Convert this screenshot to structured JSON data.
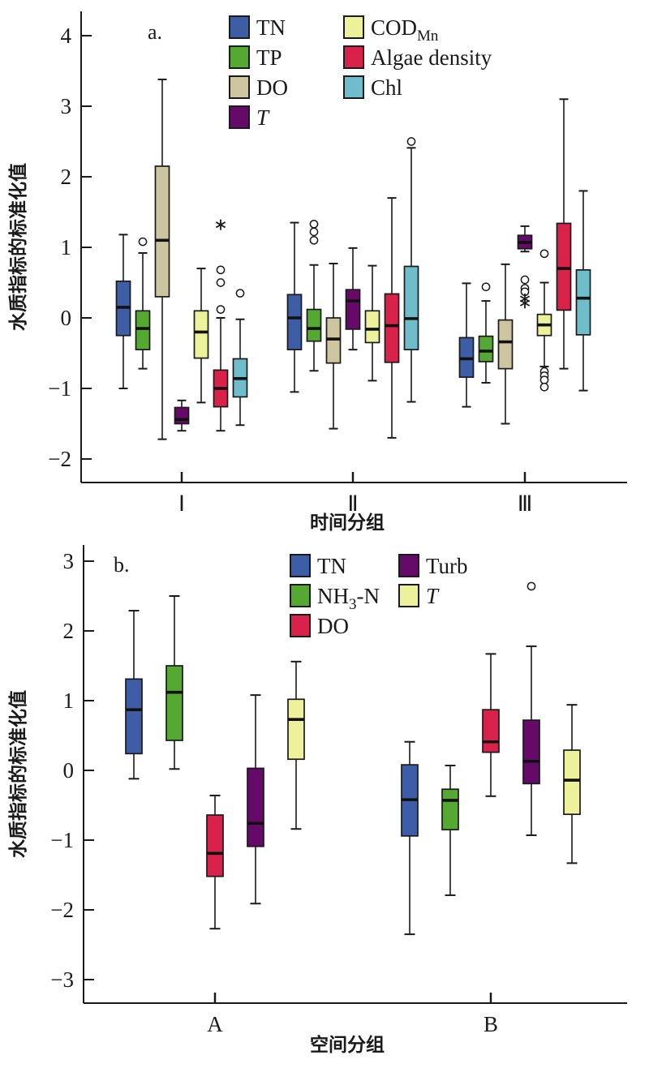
{
  "figure": {
    "panels": [
      {
        "panel_label": "a.",
        "xlabel": "时间分组",
        "ylabel": "水质指标的标准化值",
        "categories": [
          "Ⅰ",
          "Ⅱ",
          "Ⅲ"
        ]
      },
      {
        "panel_label": "b.",
        "xlabel": "空间分组",
        "ylabel": "水质指标的标准化值",
        "categories": [
          "A",
          "B"
        ]
      }
    ]
  },
  "chart_data": [
    {
      "type": "boxplot",
      "panel_label": "a.",
      "xlabel": "时间分组",
      "ylabel": "水质指标的标准化值",
      "ylim": [
        -2.35,
        4.35
      ],
      "yticks": [
        4,
        3,
        2,
        1,
        0,
        -1,
        -2
      ],
      "categories": [
        "Ⅰ",
        "Ⅱ",
        "Ⅲ"
      ],
      "grid": false,
      "legend_position": "top-inside-two-columns",
      "legend_columns": [
        [
          0,
          1,
          2,
          3
        ],
        [
          4,
          5,
          6
        ]
      ],
      "series": [
        {
          "name": "TN",
          "color": "#3D5EA6",
          "label": {
            "pre": "TN"
          },
          "boxes": [
            {
              "category": "Ⅰ",
              "low": -1.0,
              "q1": -0.25,
              "median": 0.15,
              "q3": 0.52,
              "high": 1.18,
              "outliers": [],
              "extremes": []
            },
            {
              "category": "Ⅱ",
              "low": -1.05,
              "q1": -0.45,
              "median": 0.0,
              "q3": 0.33,
              "high": 1.35,
              "outliers": [],
              "extremes": []
            },
            {
              "category": "Ⅲ",
              "low": -1.26,
              "q1": -0.84,
              "median": -0.58,
              "q3": -0.28,
              "high": 0.49,
              "outliers": [],
              "extremes": []
            }
          ]
        },
        {
          "name": "TP",
          "color": "#55A933",
          "label": {
            "pre": "TP"
          },
          "boxes": [
            {
              "category": "Ⅰ",
              "low": -0.72,
              "q1": -0.45,
              "median": -0.15,
              "q3": 0.1,
              "high": 0.92,
              "outliers": [
                1.08
              ],
              "extremes": []
            },
            {
              "category": "Ⅱ",
              "low": -0.75,
              "q1": -0.33,
              "median": -0.15,
              "q3": 0.12,
              "high": 0.75,
              "outliers": [
                1.1,
                1.22,
                1.33
              ],
              "extremes": []
            },
            {
              "category": "Ⅲ",
              "low": -0.92,
              "q1": -0.62,
              "median": -0.47,
              "q3": -0.26,
              "high": 0.24,
              "outliers": [
                0.44
              ],
              "extremes": []
            }
          ]
        },
        {
          "name": "DO",
          "color": "#CDC5A0",
          "label": {
            "pre": "DO"
          },
          "boxes": [
            {
              "category": "Ⅰ",
              "low": -1.72,
              "q1": 0.3,
              "median": 1.1,
              "q3": 2.15,
              "high": 3.38,
              "outliers": [],
              "extremes": []
            },
            {
              "category": "Ⅱ",
              "low": -1.57,
              "q1": -0.64,
              "median": -0.3,
              "q3": 0.0,
              "high": 0.77,
              "outliers": [],
              "extremes": []
            },
            {
              "category": "Ⅲ",
              "low": -1.5,
              "q1": -0.72,
              "median": -0.34,
              "q3": -0.03,
              "high": 0.76,
              "outliers": [],
              "extremes": []
            }
          ]
        },
        {
          "name": "T",
          "color": "#650A68",
          "label": {
            "pre": "T",
            "italic": true
          },
          "boxes": [
            {
              "category": "Ⅰ",
              "low": -1.6,
              "q1": -1.5,
              "median": -1.44,
              "q3": -1.27,
              "high": -1.17,
              "outliers": [],
              "extremes": []
            },
            {
              "category": "Ⅱ",
              "low": -0.45,
              "q1": -0.16,
              "median": 0.24,
              "q3": 0.4,
              "high": 0.99,
              "outliers": [],
              "extremes": []
            },
            {
              "category": "Ⅲ",
              "low": 0.94,
              "q1": 0.98,
              "median": 1.07,
              "q3": 1.17,
              "high": 1.3,
              "outliers": [
                0.54,
                0.42,
                0.37
              ],
              "extremes": [
                0.27,
                0.21
              ]
            }
          ]
        },
        {
          "name": "COD-Mn",
          "color": "#EDF199",
          "label": {
            "pre": "COD",
            "sub": "Mn"
          },
          "boxes": [
            {
              "category": "Ⅰ",
              "low": -1.2,
              "q1": -0.57,
              "median": -0.2,
              "q3": 0.1,
              "high": 0.7,
              "outliers": [],
              "extremes": []
            },
            {
              "category": "Ⅱ",
              "low": -0.89,
              "q1": -0.35,
              "median": -0.16,
              "q3": 0.1,
              "high": 0.74,
              "outliers": [],
              "extremes": []
            },
            {
              "category": "Ⅲ",
              "low": -0.69,
              "q1": -0.25,
              "median": -0.1,
              "q3": 0.05,
              "high": 0.5,
              "outliers": [
                0.91,
                -0.76,
                -0.82,
                -0.88,
                -0.98
              ],
              "extremes": []
            }
          ]
        },
        {
          "name": "Algae-density",
          "color": "#D9224A",
          "label": {
            "pre": "Algae density"
          },
          "boxes": [
            {
              "category": "Ⅰ",
              "low": -1.6,
              "q1": -1.26,
              "median": -1.0,
              "q3": -0.74,
              "high": 0.0,
              "outliers": [
                0.12,
                0.5,
                0.68
              ],
              "extremes": [
                1.32
              ]
            },
            {
              "category": "Ⅱ",
              "low": -1.7,
              "q1": -0.63,
              "median": -0.11,
              "q3": 0.34,
              "high": 1.7,
              "outliers": [],
              "extremes": []
            },
            {
              "category": "Ⅲ",
              "low": -0.72,
              "q1": 0.11,
              "median": 0.7,
              "q3": 1.34,
              "high": 3.1,
              "outliers": [],
              "extremes": []
            }
          ]
        },
        {
          "name": "Chl",
          "color": "#6FBCCB",
          "label": {
            "pre": "Chl"
          },
          "boxes": [
            {
              "category": "Ⅰ",
              "low": -1.52,
              "q1": -1.12,
              "median": -0.86,
              "q3": -0.58,
              "high": -0.02,
              "outliers": [
                0.35
              ],
              "extremes": []
            },
            {
              "category": "Ⅱ",
              "low": -1.19,
              "q1": -0.45,
              "median": -0.01,
              "q3": 0.73,
              "high": 2.41,
              "outliers": [
                2.5
              ],
              "extremes": []
            },
            {
              "category": "Ⅲ",
              "low": -1.03,
              "q1": -0.24,
              "median": 0.28,
              "q3": 0.68,
              "high": 1.8,
              "outliers": [],
              "extremes": []
            }
          ]
        }
      ]
    },
    {
      "type": "boxplot",
      "panel_label": "b.",
      "xlabel": "空间分组",
      "ylabel": "水质指标的标准化值",
      "ylim": [
        -3.35,
        3.25
      ],
      "yticks": [
        3,
        2,
        1,
        0,
        -1,
        -2,
        -3
      ],
      "categories": [
        "A",
        "B"
      ],
      "grid": false,
      "legend_position": "top-inside-two-columns",
      "legend_columns": [
        [
          0,
          1,
          2
        ],
        [
          3,
          4
        ]
      ],
      "series": [
        {
          "name": "TN",
          "color": "#3D5EA6",
          "label": {
            "pre": "TN"
          },
          "boxes": [
            {
              "category": "A",
              "low": -0.12,
              "q1": 0.24,
              "median": 0.87,
              "q3": 1.31,
              "high": 2.29,
              "outliers": [],
              "extremes": []
            },
            {
              "category": "B",
              "low": -2.35,
              "q1": -0.94,
              "median": -0.42,
              "q3": 0.08,
              "high": 0.41,
              "outliers": [],
              "extremes": []
            }
          ]
        },
        {
          "name": "NH3-N",
          "color": "#55A933",
          "label": {
            "pre": "NH",
            "sub": "3",
            "post": "-N"
          },
          "boxes": [
            {
              "category": "A",
              "low": 0.02,
              "q1": 0.43,
              "median": 1.12,
              "q3": 1.5,
              "high": 2.5,
              "outliers": [],
              "extremes": []
            },
            {
              "category": "B",
              "low": -1.79,
              "q1": -0.85,
              "median": -0.43,
              "q3": -0.27,
              "high": 0.07,
              "outliers": [],
              "extremes": []
            }
          ]
        },
        {
          "name": "DO",
          "color": "#D9224A",
          "label": {
            "pre": "DO"
          },
          "boxes": [
            {
              "category": "A",
              "low": -2.27,
              "q1": -1.52,
              "median": -1.19,
              "q3": -0.64,
              "high": -0.36,
              "outliers": [],
              "extremes": []
            },
            {
              "category": "B",
              "low": -0.37,
              "q1": 0.26,
              "median": 0.41,
              "q3": 0.87,
              "high": 1.67,
              "outliers": [],
              "extremes": []
            }
          ]
        },
        {
          "name": "Turb",
          "color": "#650A68",
          "label": {
            "pre": "Turb"
          },
          "boxes": [
            {
              "category": "A",
              "low": -1.91,
              "q1": -1.09,
              "median": -0.76,
              "q3": 0.03,
              "high": 1.08,
              "outliers": [],
              "extremes": []
            },
            {
              "category": "B",
              "low": -0.93,
              "q1": -0.19,
              "median": 0.13,
              "q3": 0.72,
              "high": 1.78,
              "outliers": [
                2.64
              ],
              "extremes": []
            }
          ]
        },
        {
          "name": "T",
          "color": "#EDF199",
          "label": {
            "pre": "T",
            "italic": true
          },
          "boxes": [
            {
              "category": "A",
              "low": -0.84,
              "q1": 0.16,
              "median": 0.73,
              "q3": 1.02,
              "high": 1.56,
              "outliers": [],
              "extremes": []
            },
            {
              "category": "B",
              "low": -1.33,
              "q1": -0.63,
              "median": -0.14,
              "q3": 0.29,
              "high": 0.94,
              "outliers": [],
              "extremes": []
            }
          ]
        }
      ]
    }
  ]
}
